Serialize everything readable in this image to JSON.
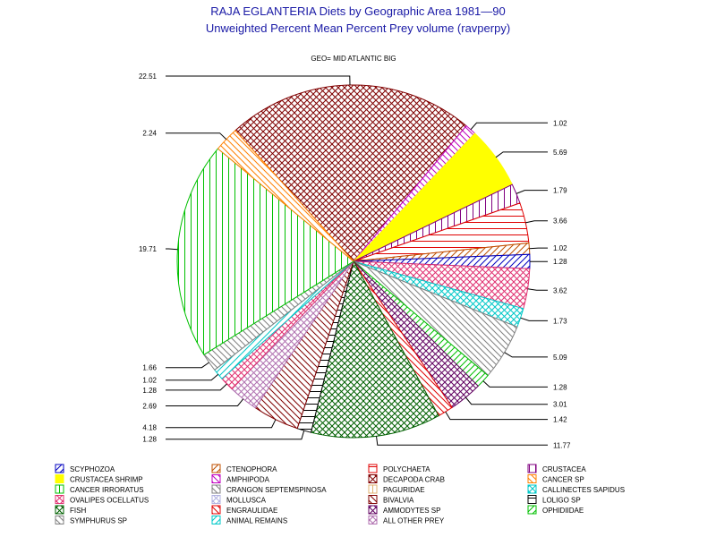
{
  "chart_data": {
    "type": "pie",
    "title": "RAJA EGLANTERIA Diets by Geographic Area 1981—90",
    "subtitle": "Unweighted Percent Mean Percent Prey  volume (ravperpy)",
    "group_label": "GEO= MID ATLANTIC BIG",
    "slices": [
      {
        "name": "DECAPODA CRAB",
        "value": 22.51,
        "label": "22.51",
        "color": "#800000",
        "pattern": "crosshatch"
      },
      {
        "name": "AMPHIPODA",
        "value": 1.02,
        "label": "1.02",
        "color": "#c000c0",
        "pattern": "diag-back"
      },
      {
        "name": "CRUSTACEA SHRIMP",
        "value": 5.69,
        "label": "5.69",
        "color": "#ffff00",
        "pattern": "solid"
      },
      {
        "name": "CRUSTACEA",
        "value": 1.79,
        "label": "1.79",
        "color": "#800080",
        "pattern": "vertical"
      },
      {
        "name": "POLYCHAETA",
        "value": 3.66,
        "label": "3.66",
        "color": "#e00000",
        "pattern": "horizontal"
      },
      {
        "name": "CTENOPHORA",
        "value": 1.02,
        "label": "1.02",
        "color": "#c05000",
        "pattern": "diag-fwd"
      },
      {
        "name": "SCYPHOZOA",
        "value": 1.28,
        "label": "1.28",
        "color": "#0000c0",
        "pattern": "diag-fwd"
      },
      {
        "name": "OVALIPES OCELLATUS",
        "value": 3.62,
        "label": "3.62",
        "color": "#e03070",
        "pattern": "crosshatch-diag"
      },
      {
        "name": "CALLINECTES SAPIDUS",
        "value": 1.73,
        "label": "1.73",
        "color": "#00c8c8",
        "pattern": "crosshatch-diag"
      },
      {
        "name": "CRANGON SEPTEMSPINOSA",
        "value": 5.09,
        "label": "5.09",
        "color": "#808080",
        "pattern": "diag-back"
      },
      {
        "name": "OPHIDIIDAE",
        "value": 1.28,
        "label": "1.28",
        "color": "#00c000",
        "pattern": "diag-fwd"
      },
      {
        "name": "AMMODYTES SP",
        "value": 3.01,
        "label": "3.01",
        "color": "#600060",
        "pattern": "crosshatch"
      },
      {
        "name": "ENGRAULIDAE",
        "value": 1.42,
        "label": "1.42",
        "color": "#e00000",
        "pattern": "diag-back"
      },
      {
        "name": "FISH",
        "value": 11.77,
        "label": "11.77",
        "color": "#006000",
        "pattern": "crosshatch-diag"
      },
      {
        "name": "LOLIGO SP",
        "value": 1.28,
        "label": "1.28",
        "color": "#000000",
        "pattern": "horizontal"
      },
      {
        "name": "BIVALVIA",
        "value": 4.18,
        "label": "4.18",
        "color": "#800000",
        "pattern": "diag-back"
      },
      {
        "name": "ALL OTHER PREY",
        "value": 2.69,
        "label": "2.69",
        "color": "#b070b0",
        "pattern": "crosshatch-diag"
      },
      {
        "name": "OVALIPES OCELLATUS",
        "value": 1.28,
        "label": "1.28",
        "color": "#e03070",
        "pattern": "crosshatch-diag"
      },
      {
        "name": "ANIMAL REMAINS",
        "value": 1.02,
        "label": "1.02",
        "color": "#00c8c8",
        "pattern": "diag-fwd"
      },
      {
        "name": "SYMPHURUS SP",
        "value": 1.66,
        "label": "1.66",
        "color": "#808080",
        "pattern": "diag-back"
      },
      {
        "name": "CANCER IRRORATUS",
        "value": 19.71,
        "label": "19.71",
        "color": "#00c000",
        "pattern": "vertical"
      },
      {
        "name": "CANCER SP",
        "value": 2.24,
        "label": "2.24",
        "color": "#ff8000",
        "pattern": "diag-back"
      }
    ],
    "legend": [
      {
        "name": "SCYPHOZOA",
        "color": "#0000c0",
        "pattern": "diag-fwd"
      },
      {
        "name": "CTENOPHORA",
        "color": "#c05000",
        "pattern": "diag-fwd"
      },
      {
        "name": "POLYCHAETA",
        "color": "#e00000",
        "pattern": "horizontal"
      },
      {
        "name": "CRUSTACEA",
        "color": "#800080",
        "pattern": "vertical"
      },
      {
        "name": "CRUSTACEA SHRIMP",
        "color": "#ffff00",
        "pattern": "solid"
      },
      {
        "name": "AMPHIPODA",
        "color": "#c000c0",
        "pattern": "diag-back"
      },
      {
        "name": "DECAPODA CRAB",
        "color": "#800000",
        "pattern": "crosshatch"
      },
      {
        "name": "CANCER SP",
        "color": "#ff8000",
        "pattern": "diag-back"
      },
      {
        "name": "CANCER IRRORATUS",
        "color": "#00c000",
        "pattern": "vertical"
      },
      {
        "name": "CRANGON SEPTEMSPINOSA",
        "color": "#808080",
        "pattern": "diag-back"
      },
      {
        "name": "PAGURIDAE",
        "color": "#e0b070",
        "pattern": "vertical"
      },
      {
        "name": "CALLINECTES SAPIDUS",
        "color": "#00c8c8",
        "pattern": "crosshatch-diag"
      },
      {
        "name": "OVALIPES OCELLATUS",
        "color": "#e03070",
        "pattern": "crosshatch-diag"
      },
      {
        "name": "MOLLUSCA",
        "color": "#b0b0e0",
        "pattern": "crosshatch-diag"
      },
      {
        "name": "BIVALVIA",
        "color": "#800000",
        "pattern": "diag-back"
      },
      {
        "name": "LOLIGO SP",
        "color": "#000000",
        "pattern": "horizontal"
      },
      {
        "name": "FISH",
        "color": "#006000",
        "pattern": "crosshatch-diag"
      },
      {
        "name": "ENGRAULIDAE",
        "color": "#e00000",
        "pattern": "diag-back"
      },
      {
        "name": "AMMODYTES SP",
        "color": "#600060",
        "pattern": "crosshatch"
      },
      {
        "name": "OPHIDIIDAE",
        "color": "#00c000",
        "pattern": "diag-fwd"
      },
      {
        "name": "SYMPHURUS SP",
        "color": "#808080",
        "pattern": "diag-back"
      },
      {
        "name": "ANIMAL REMAINS",
        "color": "#00c8c8",
        "pattern": "diag-fwd"
      },
      {
        "name": "ALL OTHER PREY",
        "color": "#b070b0",
        "pattern": "crosshatch-diag"
      }
    ]
  }
}
